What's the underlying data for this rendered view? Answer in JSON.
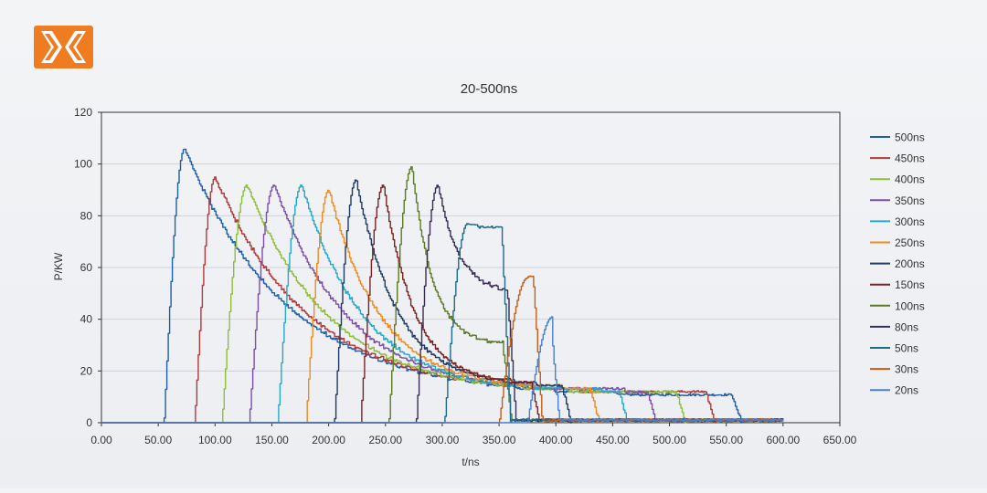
{
  "brand": {
    "logo_icon": "chevron-mark-logo",
    "color": "#f07c22"
  },
  "chart_data": {
    "type": "line",
    "title": "20-500ns",
    "xlabel": "t/ns",
    "ylabel": "P/KW",
    "xlim": [
      0,
      650
    ],
    "ylim": [
      0,
      120
    ],
    "xticks": [
      0,
      50,
      100,
      150,
      200,
      250,
      300,
      350,
      400,
      450,
      500,
      550,
      600,
      650
    ],
    "xtick_labels": [
      "0.00",
      "50.00",
      "100.00",
      "150.00",
      "200.00",
      "250.00",
      "300.00",
      "350.00",
      "400.00",
      "450.00",
      "500.00",
      "550.00",
      "600.00",
      "650.00"
    ],
    "yticks": [
      0,
      20,
      40,
      60,
      80,
      100,
      120
    ],
    "grid": "horizontal",
    "legend": "right",
    "series": [
      {
        "name": "500ns",
        "color": "#1f5fa8",
        "t_start": 55,
        "t_peak": 73,
        "peak": 106,
        "pulse": 500,
        "tail": 10
      },
      {
        "name": "450ns",
        "color": "#b03a3a",
        "t_start": 82,
        "t_peak": 100,
        "peak": 95,
        "pulse": 450,
        "tail": 11
      },
      {
        "name": "400ns",
        "color": "#8fbf3a",
        "t_start": 106,
        "t_peak": 128,
        "peak": 92,
        "pulse": 400,
        "tail": 11
      },
      {
        "name": "350ns",
        "color": "#7b4fa8",
        "t_start": 130,
        "t_peak": 152,
        "peak": 92,
        "pulse": 350,
        "tail": 12
      },
      {
        "name": "300ns",
        "color": "#25a9c9",
        "t_start": 155,
        "t_peak": 176,
        "peak": 92,
        "pulse": 300,
        "tail": 12
      },
      {
        "name": "250ns",
        "color": "#f08a1e",
        "t_start": 180,
        "t_peak": 200,
        "peak": 90,
        "pulse": 250,
        "tail": 13
      },
      {
        "name": "200ns",
        "color": "#1f3b64",
        "t_start": 205,
        "t_peak": 224,
        "peak": 94,
        "pulse": 200,
        "tail": 14
      },
      {
        "name": "150ns",
        "color": "#7a2323",
        "t_start": 228,
        "t_peak": 248,
        "peak": 92,
        "pulse": 150,
        "tail": 15
      },
      {
        "name": "100ns",
        "color": "#5c7a25",
        "t_start": 253,
        "t_peak": 273,
        "peak": 99,
        "pulse": 100,
        "tail": 30
      },
      {
        "name": "80ns",
        "color": "#3a2c55",
        "t_start": 277,
        "t_peak": 296,
        "peak": 92,
        "pulse": 80,
        "tail": 50
      },
      {
        "name": "50ns",
        "color": "#1d6b85",
        "t_start": 302,
        "t_peak": 322,
        "peak": 77,
        "pulse": 50,
        "tail": 75
      },
      {
        "name": "30ns",
        "color": "#c45e16",
        "t_start": 350,
        "t_peak": 375,
        "peak": 56,
        "pulse": 30,
        "tail": 56
      },
      {
        "name": "20ns",
        "color": "#4a7fce",
        "t_start": 375,
        "t_peak": 397,
        "peak": 41,
        "pulse": 20,
        "tail": 41
      }
    ]
  }
}
